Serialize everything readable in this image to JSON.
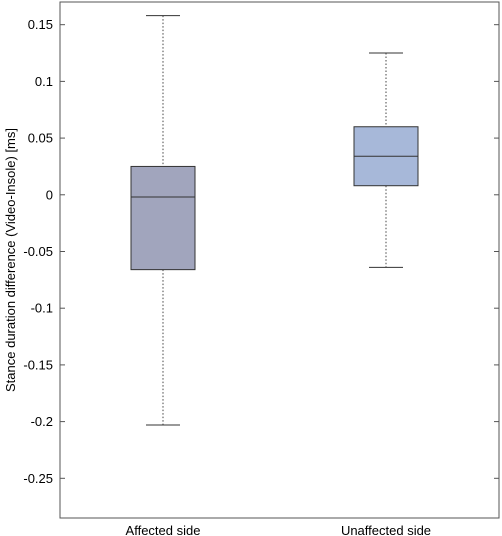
{
  "chart_data": {
    "type": "box",
    "ylabel": "Stance duration difference (Video-Insole) [ms]",
    "xlabel": "",
    "ylim": [
      -0.285,
      0.17
    ],
    "yticks": [
      0.15,
      0.1,
      0.05,
      0,
      -0.05,
      -0.1,
      -0.15,
      -0.2,
      -0.25
    ],
    "ytick_labels": [
      "0.15",
      "0.1",
      "0.05",
      "0",
      "-0.05",
      "-0.1",
      "-0.15",
      "-0.2",
      "-0.25"
    ],
    "grid": false,
    "categories": [
      "Affected side",
      "Unaffected side"
    ],
    "boxes": [
      {
        "category": "Affected side",
        "whisker_low": -0.203,
        "q1": -0.066,
        "median": -0.002,
        "q3": 0.025,
        "whisker_high": 0.158,
        "color": "#a1a5bd"
      },
      {
        "category": "Unaffected side",
        "whisker_low": -0.064,
        "q1": 0.008,
        "median": 0.034,
        "q3": 0.06,
        "whisker_high": 0.125,
        "color": "#a7b8d9"
      }
    ]
  }
}
